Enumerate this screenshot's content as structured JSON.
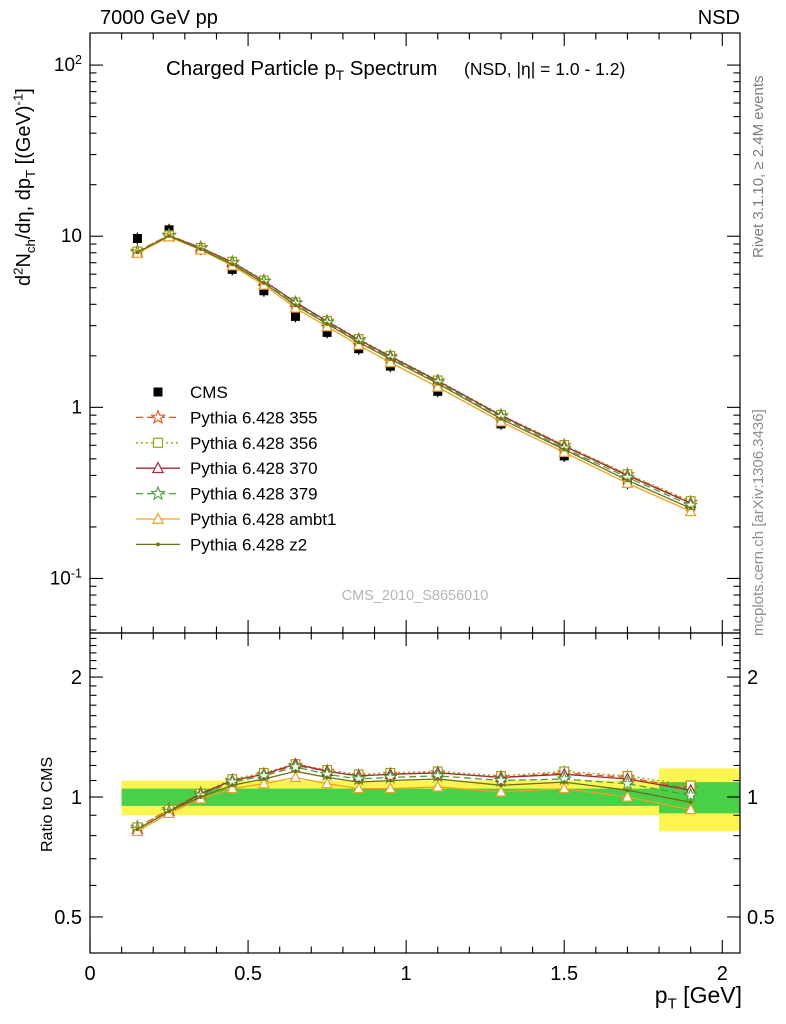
{
  "header": {
    "left": "7000 GeV pp",
    "right": "NSD"
  },
  "side_notes": {
    "rivet": "Rivet 3.1.10, ≥ 2.4M events",
    "mcplots": "mcplots.cern.ch [arXiv:1306.3436]"
  },
  "watermark": "CMS_2010_S8656010",
  "chart_data": {
    "type": "line",
    "title": "Charged Particle p_{T} Spectrum",
    "title_suffix": "(NSD, |η| = 1.0 - 1.2)",
    "xlabel": "p_{T} [GeV]",
    "ylabel": "d^{2}N_{ch}/dη, dp_{T} [(GeV)^{-1}]",
    "ratio_ylabel": "Ratio to CMS",
    "xlim": [
      0,
      2.056
    ],
    "x_major_ticks": [
      0,
      0.5,
      1,
      1.5,
      2
    ],
    "x_tick_labels": [
      "0",
      "0.5",
      "1",
      "1.5",
      "2"
    ],
    "x_minor_step": 0.1,
    "top_axis": {
      "scale": "log",
      "ylim": [
        0.048,
        154
      ],
      "major_ticks": [
        0.1,
        1,
        10,
        100
      ]
    },
    "ratio_axis": {
      "scale": "log",
      "ylim": [
        0.406,
        2.58
      ],
      "major_ticks": [
        0.5,
        1,
        2
      ],
      "tick_labels": [
        "0.5",
        "1",
        "2"
      ]
    },
    "x": [
      0.15,
      0.25,
      0.35,
      0.45,
      0.55,
      0.65,
      0.75,
      0.85,
      0.95,
      1.1,
      1.3,
      1.5,
      1.7,
      1.9
    ],
    "cms": {
      "label": "CMS",
      "color": "#000000",
      "marker": "square-filled",
      "values": [
        9.7,
        10.9,
        8.4,
        6.4,
        4.8,
        3.4,
        2.74,
        2.2,
        1.74,
        1.24,
        0.8,
        0.52,
        0.36,
        0.265
      ]
    },
    "series": [
      {
        "label": "Pythia 6.428 355",
        "color": "#e4571c",
        "line": "dashed",
        "marker": "star",
        "ratio": [
          0.84,
          0.93,
          1.02,
          1.1,
          1.14,
          1.2,
          1.16,
          1.13,
          1.14,
          1.15,
          1.12,
          1.15,
          1.12,
          1.05
        ]
      },
      {
        "label": "Pythia 6.428 356",
        "color": "#97a30a",
        "line": "dotted",
        "marker": "square",
        "ratio": [
          0.84,
          0.93,
          1.02,
          1.11,
          1.15,
          1.21,
          1.17,
          1.14,
          1.15,
          1.16,
          1.13,
          1.16,
          1.13,
          1.07
        ]
      },
      {
        "label": "Pythia 6.428 370",
        "color": "#a22c3a",
        "line": "solid",
        "marker": "triangle",
        "ratio": [
          0.83,
          0.92,
          1.02,
          1.1,
          1.14,
          1.21,
          1.16,
          1.13,
          1.14,
          1.15,
          1.12,
          1.14,
          1.11,
          1.04
        ]
      },
      {
        "label": "Pythia 6.428 379",
        "color": "#48a23a",
        "line": "dashed",
        "marker": "star",
        "ratio": [
          0.83,
          0.92,
          1.01,
          1.09,
          1.13,
          1.19,
          1.14,
          1.11,
          1.12,
          1.13,
          1.1,
          1.11,
          1.08,
          1.01
        ]
      },
      {
        "label": "Pythia 6.428 ambt1",
        "color": "#f0a01e",
        "line": "solid",
        "marker": "triangle",
        "ratio": [
          0.82,
          0.91,
          0.99,
          1.05,
          1.08,
          1.12,
          1.08,
          1.05,
          1.05,
          1.06,
          1.03,
          1.05,
          1.0,
          0.93
        ]
      },
      {
        "label": "Pythia 6.428 z2",
        "color": "#6f6f13",
        "line": "solid",
        "marker": "dot",
        "ratio": [
          0.83,
          0.92,
          1.0,
          1.07,
          1.11,
          1.16,
          1.12,
          1.09,
          1.1,
          1.11,
          1.07,
          1.09,
          1.04,
          0.97
        ]
      }
    ],
    "ratio_bands": {
      "outer": {
        "color": "#fdf54f",
        "segments": [
          {
            "x0": 0.1,
            "x1": 1.8,
            "lo": 0.9,
            "hi": 1.1
          },
          {
            "x0": 1.8,
            "x1": 2.056,
            "lo": 0.82,
            "hi": 1.18
          }
        ]
      },
      "inner": {
        "color": "#49d049",
        "segments": [
          {
            "x0": 0.1,
            "x1": 1.8,
            "lo": 0.95,
            "hi": 1.05
          },
          {
            "x0": 1.8,
            "x1": 2.056,
            "lo": 0.91,
            "hi": 1.09
          }
        ]
      }
    }
  }
}
